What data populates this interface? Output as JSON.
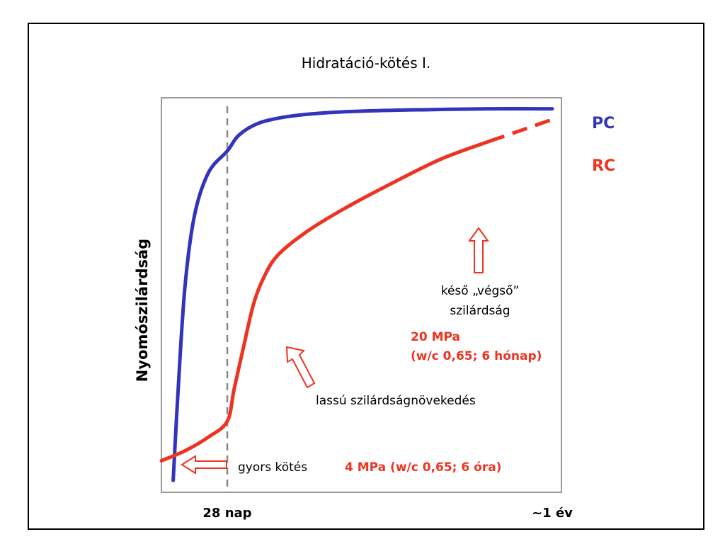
{
  "title": "Hidratáció-kötés I.",
  "chart_data": {
    "type": "line",
    "ylabel": "Nyomószilárdság",
    "xticks": [
      {
        "label": "28 nap",
        "x": 28
      },
      {
        "label": "~1 év",
        "x": 365
      }
    ],
    "xlim": [
      0,
      400
    ],
    "ylim": [
      0,
      100
    ],
    "grid": false,
    "reference_line": {
      "x": 28,
      "style": "dashed"
    },
    "series": [
      {
        "name": "PC",
        "color": "#3333bb",
        "x": [
          5,
          7,
          10,
          14,
          20,
          28,
          40,
          60,
          90,
          130,
          180,
          240,
          300,
          365
        ],
        "y": [
          3,
          25,
          52,
          70,
          81,
          86.5,
          90.5,
          93.5,
          95.2,
          96.2,
          96.7,
          97,
          97.2,
          97.2
        ]
      },
      {
        "name": "RC",
        "color": "#ee3322",
        "x": [
          0,
          10,
          20,
          28,
          35,
          45,
          55,
          65,
          80,
          110,
          150,
          200,
          250,
          300
        ],
        "y": [
          8,
          10.5,
          14,
          18,
          26,
          37,
          47.5,
          54,
          60,
          66,
          72,
          78.5,
          84.5,
          89
        ]
      }
    ],
    "rc_dashed_extension": {
      "x": [
        300,
        330,
        365
      ],
      "y": [
        89,
        91.5,
        94.5
      ]
    },
    "annotations": {
      "late_strength": {
        "line1": "késő „végső”",
        "line2": "szilárdság"
      },
      "late_value": {
        "line1": "20 MPa",
        "line2": "(w/c 0,65; 6 hónap)"
      },
      "slow_growth": "lassú szilárdságnövekedés",
      "fast_setting": "gyors kötés",
      "early_value": "4 MPa (w/c 0,65; 6 óra)"
    }
  },
  "colors": {
    "pc": "#3333bb",
    "rc": "#ee3322",
    "border": "#000000",
    "axis_box": "#999999",
    "dashed_line": "#888888"
  }
}
